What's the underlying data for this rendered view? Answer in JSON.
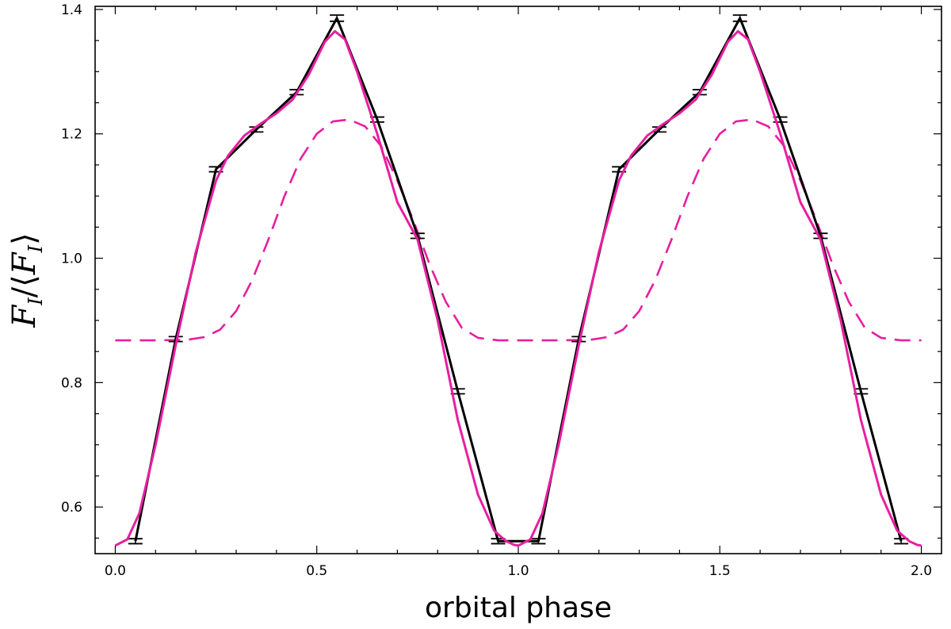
{
  "chart_data": {
    "type": "line",
    "title": "",
    "xlabel": "orbital phase",
    "ylabel": {
      "main": "F",
      "sub": "I",
      "open": "/⟨",
      "close": "⟩"
    },
    "xlim": [
      -0.05,
      2.05
    ],
    "ylim": [
      0.525,
      1.405
    ],
    "xticks": [
      0.0,
      0.5,
      1.0,
      1.5,
      2.0
    ],
    "xtick_labels": [
      "0.0",
      "0.5",
      "1.0",
      "1.5",
      "2.0"
    ],
    "yticks": [
      0.6,
      0.8,
      1.0,
      1.2,
      1.4
    ],
    "ytick_labels": [
      "0.6",
      "0.8",
      "1.0",
      "1.2",
      "1.4"
    ],
    "x_minor_step": 0.1,
    "y_minor_step": 0.05,
    "grid": false,
    "legend": "none",
    "series": [
      {
        "style": "black line with error bars",
        "color": "#000000",
        "x": [
          0.05,
          0.15,
          0.25,
          0.35,
          0.45,
          0.55,
          0.65,
          0.75,
          0.85,
          0.95,
          1.05,
          1.15,
          1.25,
          1.35,
          1.45,
          1.55,
          1.65,
          1.75,
          1.85,
          1.95
        ],
        "y": [
          0.545,
          0.87,
          1.143,
          1.207,
          1.267,
          1.386,
          1.223,
          1.036,
          0.786,
          0.545,
          0.545,
          0.87,
          1.143,
          1.207,
          1.267,
          1.386,
          1.223,
          1.036,
          0.786,
          0.545
        ],
        "err": [
          0.004,
          0.004,
          0.004,
          0.004,
          0.004,
          0.005,
          0.004,
          0.004,
          0.004,
          0.004,
          0.004,
          0.004,
          0.004,
          0.004,
          0.004,
          0.005,
          0.004,
          0.004,
          0.004,
          0.004
        ]
      },
      {
        "style": "magenta solid",
        "color": "#e81ea0",
        "x": [
          0.0,
          0.03,
          0.06,
          0.1,
          0.15,
          0.2,
          0.25,
          0.28,
          0.32,
          0.36,
          0.4,
          0.44,
          0.48,
          0.52,
          0.545,
          0.57,
          0.6,
          0.65,
          0.7,
          0.75,
          0.8,
          0.85,
          0.9,
          0.94,
          0.97,
          0.99,
          1.0,
          1.03,
          1.06,
          1.1,
          1.15,
          1.2,
          1.25,
          1.28,
          1.32,
          1.36,
          1.4,
          1.44,
          1.48,
          1.52,
          1.545,
          1.57,
          1.6,
          1.65,
          1.7,
          1.75,
          1.8,
          1.85,
          1.9,
          1.94,
          1.97,
          1.99,
          2.0
        ],
        "y": [
          0.538,
          0.548,
          0.59,
          0.7,
          0.86,
          1.01,
          1.125,
          1.165,
          1.197,
          1.216,
          1.233,
          1.255,
          1.295,
          1.348,
          1.365,
          1.352,
          1.3,
          1.2,
          1.09,
          1.03,
          0.9,
          0.74,
          0.62,
          0.562,
          0.545,
          0.539,
          0.538,
          0.548,
          0.59,
          0.7,
          0.86,
          1.01,
          1.125,
          1.165,
          1.197,
          1.216,
          1.233,
          1.255,
          1.295,
          1.348,
          1.365,
          1.352,
          1.3,
          1.2,
          1.09,
          1.03,
          0.9,
          0.74,
          0.62,
          0.562,
          0.545,
          0.539,
          0.538
        ]
      },
      {
        "style": "magenta dashed",
        "color": "#e81ea0",
        "x": [
          0.0,
          0.1,
          0.18,
          0.22,
          0.26,
          0.3,
          0.34,
          0.38,
          0.42,
          0.46,
          0.5,
          0.54,
          0.58,
          0.62,
          0.66,
          0.7,
          0.74,
          0.78,
          0.82,
          0.86,
          0.9,
          0.95,
          1.0,
          1.1,
          1.18,
          1.22,
          1.26,
          1.3,
          1.34,
          1.38,
          1.42,
          1.46,
          1.5,
          1.54,
          1.58,
          1.62,
          1.66,
          1.7,
          1.74,
          1.78,
          1.82,
          1.86,
          1.9,
          1.95,
          2.0
        ],
        "y": [
          0.868,
          0.868,
          0.869,
          0.873,
          0.885,
          0.915,
          0.965,
          1.03,
          1.1,
          1.16,
          1.2,
          1.22,
          1.223,
          1.212,
          1.18,
          1.125,
          1.06,
          0.99,
          0.93,
          0.888,
          0.872,
          0.868,
          0.868,
          0.868,
          0.869,
          0.873,
          0.885,
          0.915,
          0.965,
          1.03,
          1.1,
          1.16,
          1.2,
          1.22,
          1.223,
          1.212,
          1.18,
          1.125,
          1.06,
          0.99,
          0.93,
          0.888,
          0.872,
          0.868,
          0.868
        ]
      }
    ]
  }
}
